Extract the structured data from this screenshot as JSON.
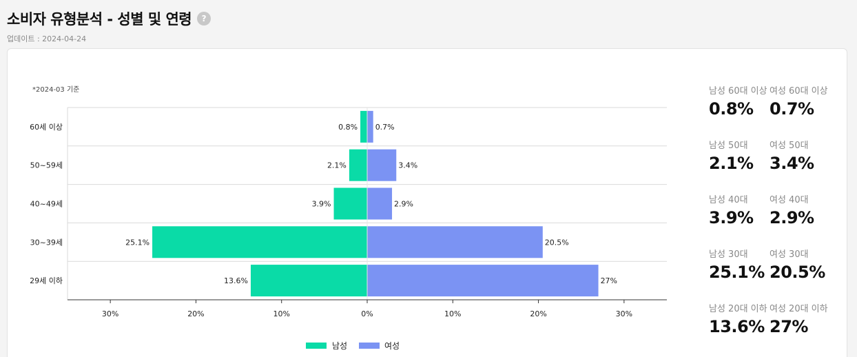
{
  "header": {
    "title": "소비자 유형분석 - 성별 및 연령",
    "help_glyph": "?",
    "updated": "업데이트 : 2024-04-24"
  },
  "basis_note": "*2024-03 기준",
  "colors": {
    "male": "#0adba7",
    "female": "#7b93f3"
  },
  "stats": [
    {
      "label": "남성 60대 이상",
      "value": "0.8%"
    },
    {
      "label": "여성 60대 이상",
      "value": "0.7%"
    },
    {
      "label": "남성 50대",
      "value": "2.1%"
    },
    {
      "label": "여성 50대",
      "value": "3.4%"
    },
    {
      "label": "남성 40대",
      "value": "3.9%"
    },
    {
      "label": "여성 40대",
      "value": "2.9%"
    },
    {
      "label": "남성 30대",
      "value": "25.1%"
    },
    {
      "label": "여성 30대",
      "value": "20.5%"
    },
    {
      "label": "남성 20대 이하",
      "value": "13.6%"
    },
    {
      "label": "여성 20대 이하",
      "value": "27%"
    }
  ],
  "chart_data": {
    "type": "bar",
    "orientation": "horizontal-diverging",
    "categories": [
      "60세 이상",
      "50~59세",
      "40~49세",
      "30~39세",
      "29세 이하"
    ],
    "series": [
      {
        "name": "남성",
        "values": [
          0.8,
          2.1,
          3.9,
          25.1,
          13.6
        ],
        "labels": [
          "0.8%",
          "2.1%",
          "3.9%",
          "25.1%",
          "13.6%"
        ]
      },
      {
        "name": "여성",
        "values": [
          0.7,
          3.4,
          2.9,
          20.5,
          27
        ],
        "labels": [
          "0.7%",
          "3.4%",
          "2.9%",
          "20.5%",
          "27%"
        ]
      }
    ],
    "xlim": [
      -35,
      35
    ],
    "xticks": [
      -30,
      -20,
      -10,
      0,
      10,
      20,
      30
    ],
    "xtick_labels": [
      "30%",
      "20%",
      "10%",
      "0%",
      "10%",
      "20%",
      "30%"
    ],
    "legend_position": "bottom-center",
    "grid": "horizontal"
  }
}
